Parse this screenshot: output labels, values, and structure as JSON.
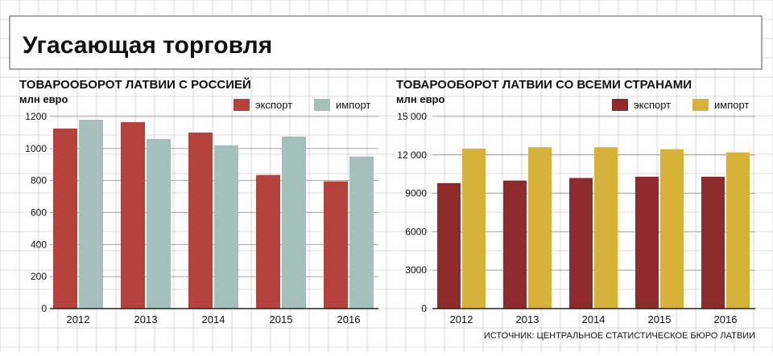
{
  "title": "Угасающая торговля",
  "source": "ИСТОЧНИК: ЦЕНТРАЛЬНОЕ СТАТИСТИЧЕСКОЕ БЮРО ЛАТВИИ",
  "colors": {
    "grid": "#b9b9b9",
    "border": "#8a8a8a",
    "russia_export": "#b5433d",
    "russia_import": "#a3c1ba",
    "world_export": "#8e2a2c",
    "world_import": "#d6b23a"
  },
  "chart_data": [
    {
      "type": "bar",
      "title": "ТОВАРООБОРОТ ЛАТВИИ С РОССИЕЙ",
      "ylabel": "млн евро",
      "xlabel": "",
      "categories": [
        "2012",
        "2013",
        "2014",
        "2015",
        "2016"
      ],
      "series": [
        {
          "name": "экспорт",
          "values": [
            1125,
            1165,
            1100,
            835,
            795
          ]
        },
        {
          "name": "импорт",
          "values": [
            1180,
            1060,
            1020,
            1075,
            950
          ]
        }
      ],
      "yticks": [
        0,
        200,
        400,
        600,
        800,
        1000,
        1200
      ],
      "ytick_labels": [
        "0",
        "200",
        "400",
        "600",
        "800",
        "1000",
        "1200"
      ],
      "ylim": [
        0,
        1200
      ],
      "grid": true,
      "legend": "top-right"
    },
    {
      "type": "bar",
      "title": "ТОВАРООБОРОТ ЛАТВИИ СО ВСЕМИ СТРАНАМИ",
      "ylabel": "млн евро",
      "xlabel": "",
      "categories": [
        "2012",
        "2013",
        "2014",
        "2015",
        "2016"
      ],
      "series": [
        {
          "name": "экспорт",
          "values": [
            9800,
            10000,
            10200,
            10300,
            10300
          ]
        },
        {
          "name": "импорт",
          "values": [
            12500,
            12600,
            12600,
            12450,
            12200
          ]
        }
      ],
      "yticks": [
        0,
        3000,
        6000,
        9000,
        12000,
        15000
      ],
      "ytick_labels": [
        "0",
        "3000",
        "6000",
        "9000",
        "12 000",
        "15 000"
      ],
      "ylim": [
        0,
        15000
      ],
      "grid": true,
      "legend": "top-right"
    }
  ]
}
